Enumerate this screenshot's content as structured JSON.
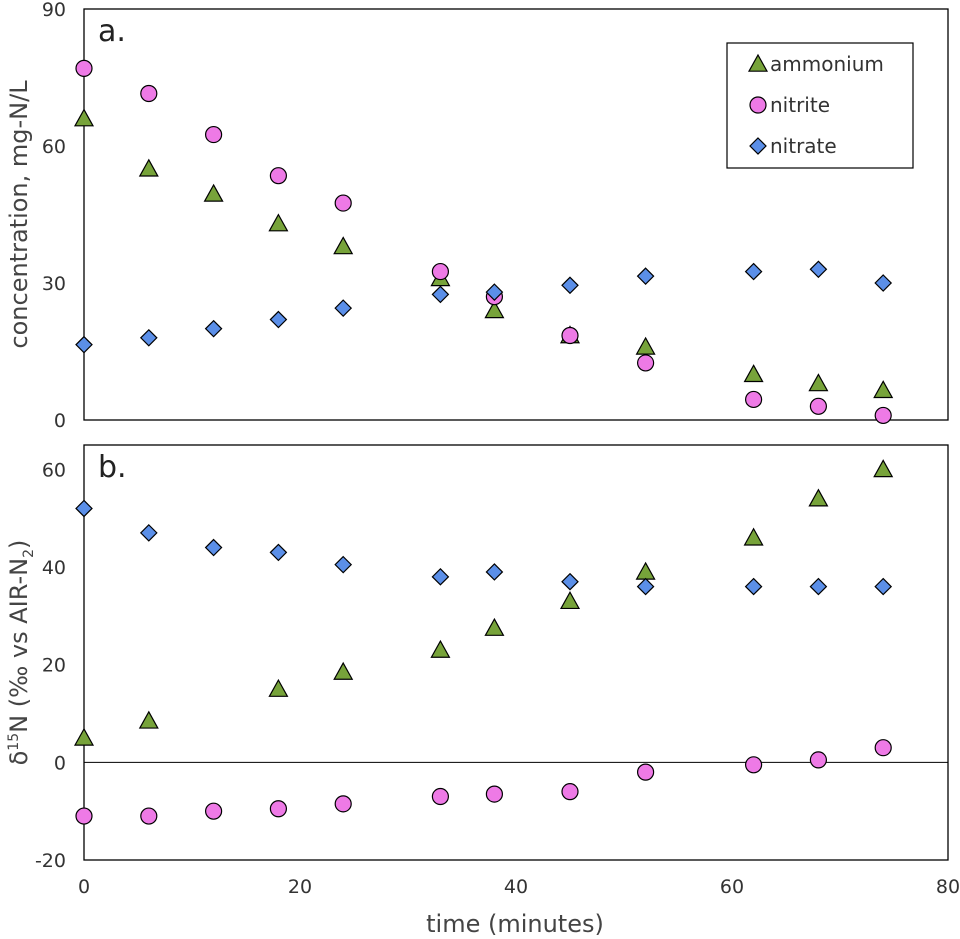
{
  "chart_data": [
    {
      "type": "scatter",
      "panel_label": "a.",
      "ylabel": "concentration, mg-N/L",
      "ylim": [
        0,
        90
      ],
      "yticks": [
        0,
        30,
        60,
        90
      ],
      "legend_position": "top-right",
      "series": [
        {
          "name": "ammonium",
          "marker": "triangle",
          "color": "#77a33a",
          "x": [
            0,
            6,
            12,
            18,
            24,
            33,
            38,
            45,
            52,
            62,
            68,
            74
          ],
          "y": [
            66,
            55,
            49.5,
            43,
            38,
            31,
            24,
            18.5,
            16,
            10,
            8,
            6.5
          ]
        },
        {
          "name": "nitrite",
          "marker": "circle",
          "color": "#ee7ae6",
          "x": [
            0,
            6,
            12,
            18,
            24,
            33,
            38,
            45,
            52,
            62,
            68,
            74
          ],
          "y": [
            77,
            71.5,
            62.5,
            53.5,
            47.5,
            32.5,
            27,
            18.5,
            12.5,
            4.5,
            3,
            1
          ]
        },
        {
          "name": "nitrate",
          "marker": "diamond",
          "color": "#5b8fe8",
          "x": [
            0,
            6,
            12,
            18,
            24,
            33,
            38,
            45,
            52,
            62,
            68,
            74
          ],
          "y": [
            16.5,
            18,
            20,
            22,
            24.5,
            27.5,
            28,
            29.5,
            31.5,
            32.5,
            33,
            30
          ]
        }
      ]
    },
    {
      "type": "scatter",
      "panel_label": "b.",
      "ylabel_main": "δ",
      "ylabel_sup": "15",
      "ylabel_mid": "N (‰ vs AIR-N",
      "ylabel_sub": "2",
      "ylabel_end": ")",
      "ylim": [
        -20,
        65
      ],
      "yticks": [
        -20,
        0,
        20,
        40,
        60
      ],
      "zero_line": true,
      "series": [
        {
          "name": "ammonium",
          "marker": "triangle",
          "color": "#77a33a",
          "x": [
            0,
            6,
            18,
            24,
            33,
            38,
            45,
            52,
            62,
            68,
            74
          ],
          "y": [
            5,
            8.5,
            15,
            18.5,
            23,
            27.5,
            33,
            39,
            46,
            54,
            60
          ]
        },
        {
          "name": "nitrite",
          "marker": "circle",
          "color": "#ee7ae6",
          "x": [
            0,
            6,
            12,
            18,
            24,
            33,
            38,
            45,
            52,
            62,
            68,
            74
          ],
          "y": [
            -11,
            -11,
            -10,
            -9.5,
            -8.5,
            -7,
            -6.5,
            -6,
            -2,
            -0.5,
            0.5,
            3
          ]
        },
        {
          "name": "nitrate",
          "marker": "diamond",
          "color": "#5b8fe8",
          "x": [
            0,
            6,
            12,
            18,
            24,
            33,
            38,
            45,
            52,
            62,
            68,
            74
          ],
          "y": [
            52,
            47,
            44,
            43,
            40.5,
            38,
            39,
            37,
            36,
            36,
            36,
            36
          ]
        }
      ]
    }
  ],
  "xaxis": {
    "label": "time (minutes)",
    "xlim": [
      0,
      80
    ],
    "xticks": [
      0,
      20,
      40,
      60,
      80
    ]
  }
}
